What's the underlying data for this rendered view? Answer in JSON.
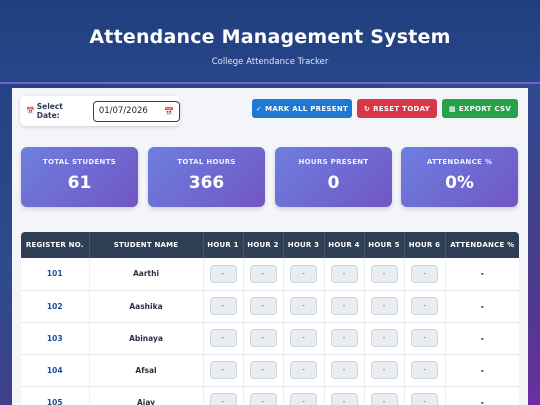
{
  "header": {
    "title": "Attendance Management System",
    "subtitle": "College Attendance Tracker"
  },
  "toolbar": {
    "date_label": "Select Date:",
    "date_value": "01/07/2026",
    "mark_all_label": "MARK ALL PRESENT",
    "reset_label": "RESET TODAY",
    "export_label": "EXPORT CSV"
  },
  "stats": [
    {
      "label": "TOTAL STUDENTS",
      "value": "61"
    },
    {
      "label": "TOTAL HOURS",
      "value": "366"
    },
    {
      "label": "HOURS PRESENT",
      "value": "0"
    },
    {
      "label": "ATTENDANCE %",
      "value": "0%"
    }
  ],
  "table": {
    "headers": [
      "REGISTER NO.",
      "STUDENT NAME",
      "HOUR 1",
      "HOUR 2",
      "HOUR 3",
      "HOUR 4",
      "HOUR 5",
      "HOUR 6",
      "ATTENDANCE %"
    ],
    "rows": [
      {
        "reg": "101",
        "name": "Aarthi",
        "hours": [
          "-",
          "-",
          "-",
          "-",
          "-",
          "-"
        ],
        "pct": "-"
      },
      {
        "reg": "102",
        "name": "Aashika",
        "hours": [
          "-",
          "-",
          "-",
          "-",
          "-",
          "-"
        ],
        "pct": "-"
      },
      {
        "reg": "103",
        "name": "Abinaya",
        "hours": [
          "-",
          "-",
          "-",
          "-",
          "-",
          "-"
        ],
        "pct": "-"
      },
      {
        "reg": "104",
        "name": "Afsal",
        "hours": [
          "-",
          "-",
          "-",
          "-",
          "-",
          "-"
        ],
        "pct": "-"
      },
      {
        "reg": "105",
        "name": "Ajay",
        "hours": [
          "-",
          "-",
          "-",
          "-",
          "-",
          "-"
        ],
        "pct": "-"
      }
    ]
  },
  "icons": {
    "calendar": "calendar-icon",
    "check": "check-icon",
    "reset": "reset-icon",
    "export": "export-icon"
  }
}
